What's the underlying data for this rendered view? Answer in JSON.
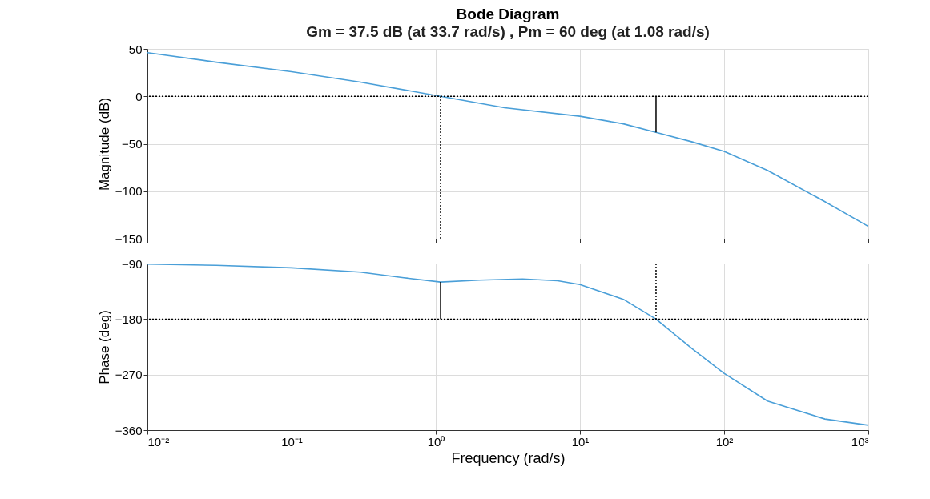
{
  "chart_data": [
    {
      "type": "line",
      "title": "Bode Diagram",
      "subtitle": "Gm = 37.5 dB (at 33.7 rad/s) ,  Pm = 60 deg (at 1.08 rad/s)",
      "ylabel": "Magnitude (dB)",
      "log": "x",
      "grid": true,
      "tick_labels": "y",
      "xlim": [
        0.01,
        1000
      ],
      "xticks": [
        {
          "value": 0.01,
          "label": null
        },
        {
          "value": 0.1,
          "label": null
        },
        {
          "value": 1,
          "label": null
        },
        {
          "value": 10,
          "label": null
        },
        {
          "value": 100,
          "label": null
        },
        {
          "value": 1000,
          "label": null
        }
      ],
      "ylim": [
        -150,
        50
      ],
      "yticks": [
        -150,
        -100,
        -50,
        0,
        50
      ],
      "series": [
        {
          "color": "#4a9fd8",
          "x": [
            0.01,
            0.03,
            0.1,
            0.3,
            1.08,
            3,
            10,
            20,
            33.7,
            60,
            100,
            200,
            500,
            1000
          ],
          "values": [
            46,
            36,
            26,
            15,
            0,
            -12,
            -21,
            -29,
            -38,
            -48,
            -58,
            -78,
            -111,
            -137
          ]
        },
        {
          "color": "#000000",
          "x": [
            33.7,
            33.7
          ],
          "values": [
            0,
            -38
          ]
        },
        {
          "color": "#000000",
          "line_style": "dotted",
          "x": [
            1.08,
            1.08
          ],
          "values": [
            -150,
            0
          ]
        }
      ],
      "ref_lines": [
        {
          "axis": "y",
          "value": 0,
          "color": "#000000",
          "line_style": "dotted"
        }
      ]
    },
    {
      "type": "line",
      "xlabel": "Frequency  (rad/s)",
      "ylabel": "Phase (deg)",
      "log": "x",
      "grid": true,
      "xlim": [
        0.01,
        1000
      ],
      "xticks": [
        {
          "value": 0.01,
          "label": "10⁻²"
        },
        {
          "value": 0.1,
          "label": "10⁻¹"
        },
        {
          "value": 1,
          "label": "10⁰"
        },
        {
          "value": 10,
          "label": "10¹"
        },
        {
          "value": 100,
          "label": "10²"
        },
        {
          "value": 1000,
          "label": "10³"
        }
      ],
      "ylim": [
        -360,
        -90
      ],
      "yticks": [
        -360,
        -270,
        -180,
        -90
      ],
      "series": [
        {
          "color": "#4a9fd8",
          "x": [
            0.01,
            0.03,
            0.1,
            0.3,
            0.6,
            1.08,
            2,
            4,
            7,
            10,
            20,
            33.7,
            60,
            100,
            200,
            500,
            1000
          ],
          "values": [
            -91,
            -93,
            -97,
            -104,
            -113,
            -120,
            -117,
            -115,
            -118,
            -124,
            -148,
            -180,
            -228,
            -268,
            -313,
            -342,
            -352
          ]
        },
        {
          "color": "#000000",
          "x": [
            1.08,
            1.08
          ],
          "values": [
            -180,
            -120
          ]
        },
        {
          "color": "#000000",
          "line_style": "dotted",
          "x": [
            33.7,
            33.7
          ],
          "values": [
            -90,
            -180
          ]
        }
      ],
      "ref_lines": [
        {
          "axis": "y",
          "value": -180,
          "color": "#000000",
          "line_style": "dotted"
        }
      ]
    }
  ]
}
